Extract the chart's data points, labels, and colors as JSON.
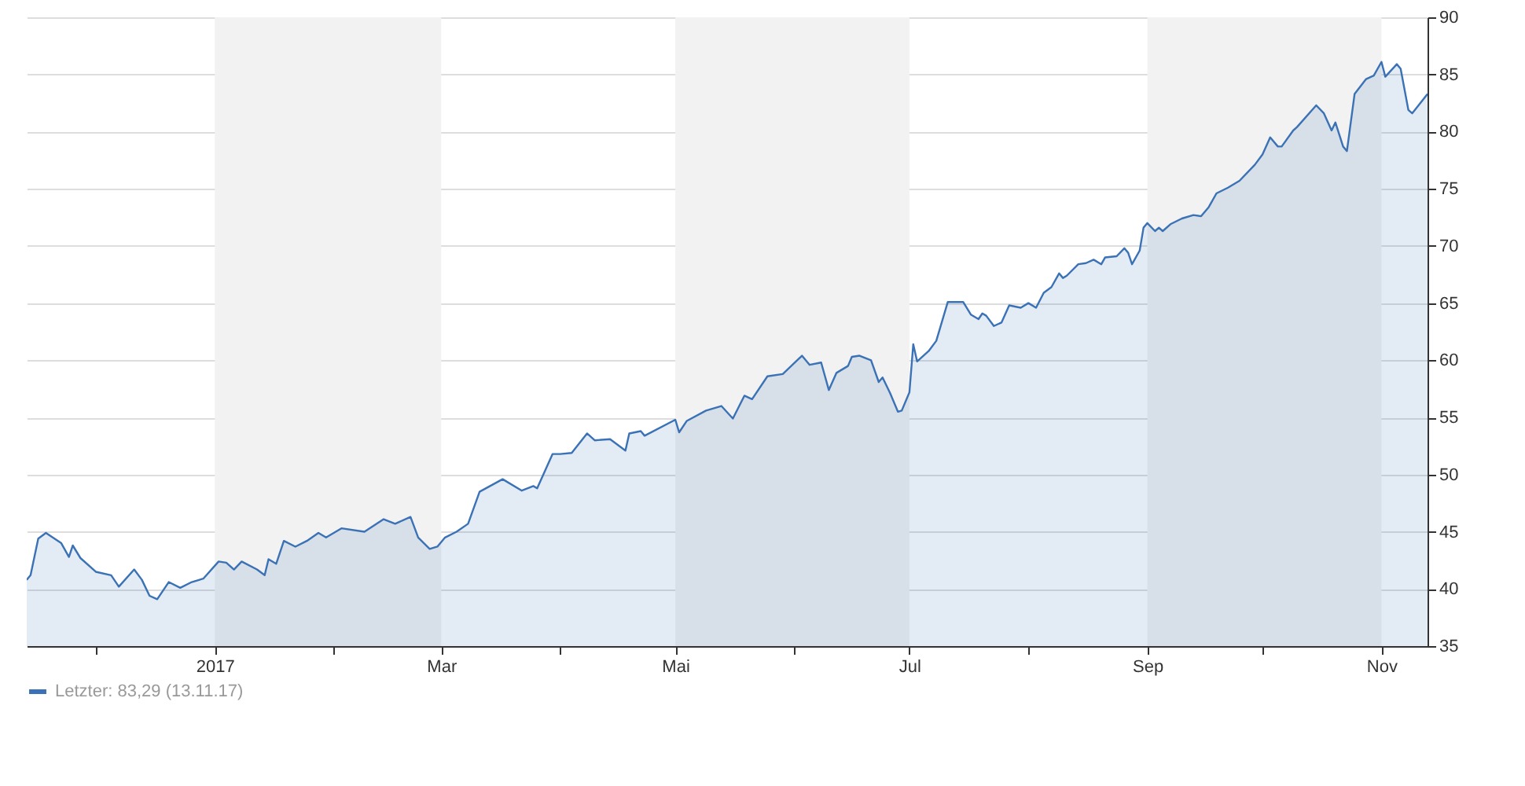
{
  "chart_data": {
    "type": "area",
    "x": [
      "2016-11-13",
      "2016-11-14",
      "2016-11-16",
      "2016-11-18",
      "2016-11-22",
      "2016-11-24",
      "2016-11-25",
      "2016-11-27",
      "2016-12-01",
      "2016-12-05",
      "2016-12-07",
      "2016-12-11",
      "2016-12-13",
      "2016-12-15",
      "2016-12-17",
      "2016-12-20",
      "2016-12-23",
      "2016-12-26",
      "2016-12-29",
      "2017-01-02",
      "2017-01-04",
      "2017-01-06",
      "2017-01-08",
      "2017-01-12",
      "2017-01-14",
      "2017-01-15",
      "2017-01-17",
      "2017-01-19",
      "2017-01-22",
      "2017-01-25",
      "2017-01-28",
      "2017-01-30",
      "2017-02-03",
      "2017-02-09",
      "2017-02-14",
      "2017-02-17",
      "2017-02-21",
      "2017-02-23",
      "2017-02-26",
      "2017-02-28",
      "2017-03-02",
      "2017-03-05",
      "2017-03-08",
      "2017-03-11",
      "2017-03-17",
      "2017-03-22",
      "2017-03-25",
      "2017-03-26",
      "2017-03-30",
      "2017-04-01",
      "2017-04-04",
      "2017-04-08",
      "2017-04-10",
      "2017-04-14",
      "2017-04-18",
      "2017-04-19",
      "2017-04-22",
      "2017-04-23",
      "2017-05-01",
      "2017-05-02",
      "2017-05-04",
      "2017-05-09",
      "2017-05-13",
      "2017-05-16",
      "2017-05-19",
      "2017-05-21",
      "2017-05-25",
      "2017-05-29",
      "2017-06-03",
      "2017-06-05",
      "2017-06-08",
      "2017-06-10",
      "2017-06-12",
      "2017-06-15",
      "2017-06-16",
      "2017-06-18",
      "2017-06-21",
      "2017-06-23",
      "2017-06-24",
      "2017-06-26",
      "2017-06-28",
      "2017-06-29",
      "2017-07-01",
      "2017-07-02",
      "2017-07-03",
      "2017-07-06",
      "2017-07-08",
      "2017-07-11",
      "2017-07-15",
      "2017-07-17",
      "2017-07-19",
      "2017-07-20",
      "2017-07-21",
      "2017-07-23",
      "2017-07-25",
      "2017-07-27",
      "2017-07-30",
      "2017-08-01",
      "2017-08-03",
      "2017-08-05",
      "2017-08-07",
      "2017-08-09",
      "2017-08-10",
      "2017-08-11",
      "2017-08-14",
      "2017-08-16",
      "2017-08-18",
      "2017-08-20",
      "2017-08-21",
      "2017-08-24",
      "2017-08-26",
      "2017-08-27",
      "2017-08-28",
      "2017-08-30",
      "2017-08-31",
      "2017-09-01",
      "2017-09-03",
      "2017-09-04",
      "2017-09-05",
      "2017-09-07",
      "2017-09-10",
      "2017-09-13",
      "2017-09-15",
      "2017-09-17",
      "2017-09-19",
      "2017-09-22",
      "2017-09-25",
      "2017-09-29",
      "2017-10-01",
      "2017-10-03",
      "2017-10-05",
      "2017-10-06",
      "2017-10-09",
      "2017-10-10",
      "2017-10-15",
      "2017-10-17",
      "2017-10-19",
      "2017-10-20",
      "2017-10-22",
      "2017-10-23",
      "2017-10-25",
      "2017-10-28",
      "2017-10-30",
      "2017-11-01",
      "2017-11-02",
      "2017-11-05",
      "2017-11-06",
      "2017-11-08",
      "2017-11-09",
      "2017-11-13"
    ],
    "series": [
      {
        "name": "Letzter: 83,29 (13.11.17)",
        "color": "#3a72b5",
        "values": [
          40.8,
          41.2,
          44.4,
          44.9,
          44.0,
          42.8,
          43.8,
          42.7,
          41.5,
          41.2,
          40.2,
          41.7,
          40.8,
          39.4,
          39.1,
          40.6,
          40.1,
          40.6,
          40.9,
          42.4,
          42.3,
          41.7,
          42.4,
          41.7,
          41.2,
          42.6,
          42.2,
          44.2,
          43.7,
          44.2,
          44.9,
          44.5,
          45.3,
          45.0,
          46.1,
          45.7,
          46.3,
          44.5,
          43.5,
          43.7,
          44.5,
          45.0,
          45.7,
          48.5,
          49.6,
          48.6,
          49.0,
          48.8,
          51.8,
          51.8,
          51.9,
          53.6,
          53.0,
          53.1,
          52.1,
          53.6,
          53.8,
          53.4,
          54.8,
          53.7,
          54.7,
          55.6,
          56.0,
          54.9,
          56.9,
          56.6,
          58.6,
          58.8,
          60.4,
          59.6,
          59.8,
          57.4,
          58.9,
          59.5,
          60.3,
          60.4,
          60.0,
          58.1,
          58.5,
          57.1,
          55.5,
          55.6,
          57.2,
          61.4,
          59.9,
          60.8,
          61.7,
          65.1,
          65.1,
          64.0,
          63.6,
          64.1,
          63.9,
          63.0,
          63.3,
          64.8,
          64.6,
          65.0,
          64.6,
          65.9,
          66.4,
          67.6,
          67.2,
          67.4,
          68.4,
          68.5,
          68.8,
          68.4,
          69.0,
          69.1,
          69.8,
          69.4,
          68.4,
          69.6,
          71.6,
          72.0,
          71.3,
          71.6,
          71.3,
          71.9,
          72.4,
          72.7,
          72.6,
          73.4,
          74.6,
          75.1,
          75.7,
          77.1,
          78.0,
          79.5,
          78.7,
          78.7,
          80.1,
          80.4,
          82.3,
          81.6,
          80.1,
          80.8,
          78.7,
          78.3,
          83.3,
          84.6,
          84.9,
          86.1,
          84.8,
          85.9,
          85.5,
          81.9,
          81.6,
          83.29
        ]
      }
    ],
    "xlim": [
      "2016-11-13",
      "2017-11-13"
    ],
    "xticks": [
      {
        "value": "2016-12-01",
        "label": null
      },
      {
        "value": "2017-01-01",
        "label": "2017"
      },
      {
        "value": "2017-02-01",
        "label": null
      },
      {
        "value": "2017-03-01",
        "label": "Mar"
      },
      {
        "value": "2017-04-01",
        "label": null
      },
      {
        "value": "2017-05-01",
        "label": "Mai"
      },
      {
        "value": "2017-06-01",
        "label": null
      },
      {
        "value": "2017-07-01",
        "label": "Jul"
      },
      {
        "value": "2017-08-01",
        "label": null
      },
      {
        "value": "2017-09-01",
        "label": "Sep"
      },
      {
        "value": "2017-10-01",
        "label": null
      },
      {
        "value": "2017-11-01",
        "label": "Nov"
      }
    ],
    "ylim": [
      35,
      90
    ],
    "yticks": [
      35,
      40,
      45,
      50,
      55,
      60,
      65,
      70,
      75,
      80,
      85,
      90
    ],
    "bands": [
      {
        "axis": "x",
        "from": "2017-01-01",
        "to": "2017-03-01",
        "color": "#f2f2f2"
      },
      {
        "axis": "x",
        "from": "2017-05-01",
        "to": "2017-07-01",
        "color": "#f2f2f2"
      },
      {
        "axis": "x",
        "from": "2017-09-01",
        "to": "2017-11-01",
        "color": "#f2f2f2"
      }
    ],
    "grid": "y",
    "legend": "bottom left"
  }
}
